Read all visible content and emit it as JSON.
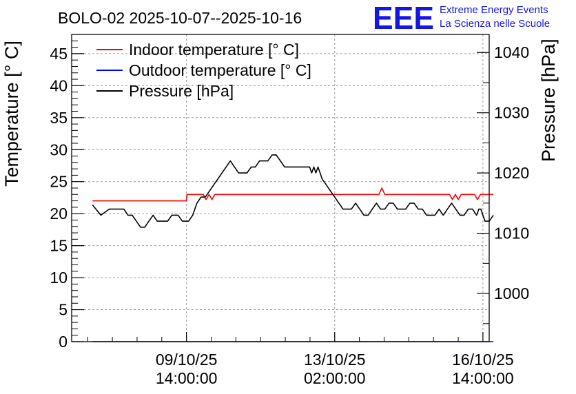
{
  "chart_data": {
    "type": "line",
    "title": "BOLO-02 2025-10-07--2025-10-16",
    "ylabel": "Temperature [° C]",
    "ylabel_right": "Pressure [hPa]",
    "xlabel": "",
    "ylim": [
      0,
      48
    ],
    "ylim_right": [
      992,
      1043
    ],
    "xlim": [
      0,
      100
    ],
    "left_ticks": [
      "0",
      "5",
      "10",
      "15",
      "20",
      "25",
      "30",
      "35",
      "40",
      "45"
    ],
    "left_tick_values": [
      0,
      5,
      10,
      15,
      20,
      25,
      30,
      35,
      40,
      45
    ],
    "right_ticks": [
      "1000",
      "1010",
      "1020",
      "1030",
      "1040"
    ],
    "right_tick_values": [
      1000,
      1010,
      1020,
      1030,
      1040
    ],
    "x_ticks": [
      {
        "x": 27.5,
        "line1": "09/10/25",
        "line2": "14:00:00"
      },
      {
        "x": 63.0,
        "line1": "13/10/25",
        "line2": "02:00:00"
      },
      {
        "x": 98.5,
        "line1": "16/10/25",
        "line2": "14:00:00"
      }
    ],
    "grid": true,
    "legend_position": "top-left",
    "legend": [
      {
        "name": "Indoor temperature [° C]",
        "color": "#ff0000"
      },
      {
        "name": "Outdoor temperature [° C]",
        "color": "#0000ff"
      },
      {
        "name": "Pressure [hPa]",
        "color": "#000000"
      }
    ],
    "series": [
      {
        "name": "Indoor temperature [° C]",
        "axis": "left",
        "color": "#ff0000",
        "points": [
          [
            5,
            22
          ],
          [
            27.5,
            22
          ],
          [
            27.6,
            23
          ],
          [
            31.5,
            23
          ],
          [
            32.2,
            22.2
          ],
          [
            32.9,
            23
          ],
          [
            33.6,
            22.2
          ],
          [
            34.3,
            23
          ],
          [
            73.6,
            23
          ],
          [
            74.3,
            24
          ],
          [
            75.0,
            23
          ],
          [
            90.5,
            23
          ],
          [
            91.2,
            22.2
          ],
          [
            91.9,
            23
          ],
          [
            92.6,
            22.2
          ],
          [
            93.3,
            23
          ],
          [
            96.5,
            23
          ],
          [
            97.2,
            22.2
          ],
          [
            97.9,
            23
          ],
          [
            101,
            23
          ]
        ]
      },
      {
        "name": "Outdoor temperature [° C]",
        "axis": "left",
        "color": "#0000ff",
        "points": [
          [
            5,
            0
          ],
          [
            101,
            0
          ]
        ]
      },
      {
        "name": "Pressure [hPa]",
        "axis": "right",
        "color": "#000000",
        "points": [
          [
            5,
            1014.7
          ],
          [
            7,
            1013
          ],
          [
            9,
            1014
          ],
          [
            11,
            1014
          ],
          [
            12.5,
            1014
          ],
          [
            13.5,
            1013
          ],
          [
            14.5,
            1013
          ],
          [
            15.5,
            1012
          ],
          [
            16.5,
            1011
          ],
          [
            17.5,
            1011
          ],
          [
            18.5,
            1012
          ],
          [
            19.5,
            1013
          ],
          [
            20.5,
            1012
          ],
          [
            22,
            1012
          ],
          [
            23,
            1012
          ],
          [
            24,
            1013
          ],
          [
            25.5,
            1013
          ],
          [
            26.5,
            1012
          ],
          [
            28,
            1012
          ],
          [
            29,
            1013
          ],
          [
            30,
            1015
          ],
          [
            31,
            1016
          ],
          [
            32,
            1016
          ],
          [
            33,
            1017
          ],
          [
            34,
            1018
          ],
          [
            35,
            1019
          ],
          [
            36,
            1020
          ],
          [
            37,
            1021
          ],
          [
            38,
            1022
          ],
          [
            39,
            1021
          ],
          [
            40,
            1020
          ],
          [
            42,
            1020
          ],
          [
            43,
            1021
          ],
          [
            44,
            1021
          ],
          [
            45,
            1022
          ],
          [
            47,
            1022
          ],
          [
            48,
            1023
          ],
          [
            49,
            1023
          ],
          [
            50,
            1022
          ],
          [
            51,
            1021
          ],
          [
            53,
            1021
          ],
          [
            55,
            1021
          ],
          [
            57,
            1021
          ],
          [
            57.5,
            1020
          ],
          [
            58,
            1021
          ],
          [
            58.5,
            1020
          ],
          [
            59,
            1021
          ],
          [
            59.5,
            1020
          ],
          [
            60,
            1019
          ],
          [
            61,
            1018
          ],
          [
            62,
            1017
          ],
          [
            63,
            1016
          ],
          [
            64,
            1015
          ],
          [
            65,
            1014
          ],
          [
            66,
            1014
          ],
          [
            67,
            1014
          ],
          [
            68,
            1015
          ],
          [
            69,
            1014
          ],
          [
            70,
            1013
          ],
          [
            71,
            1013
          ],
          [
            72,
            1014
          ],
          [
            73,
            1015
          ],
          [
            74,
            1014
          ],
          [
            75,
            1014
          ],
          [
            76,
            1015
          ],
          [
            77,
            1015
          ],
          [
            78,
            1014
          ],
          [
            80,
            1014
          ],
          [
            81,
            1015
          ],
          [
            82,
            1015
          ],
          [
            83,
            1014
          ],
          [
            84,
            1014
          ],
          [
            85,
            1013
          ],
          [
            87,
            1013
          ],
          [
            88,
            1014
          ],
          [
            89,
            1013
          ],
          [
            90,
            1014
          ],
          [
            91,
            1015
          ],
          [
            92,
            1014
          ],
          [
            93,
            1013
          ],
          [
            94,
            1013
          ],
          [
            95,
            1014
          ],
          [
            96,
            1014
          ],
          [
            97,
            1013
          ],
          [
            97.5,
            1014
          ],
          [
            98,
            1014
          ],
          [
            99,
            1012
          ],
          [
            100,
            1012
          ],
          [
            101,
            1013
          ]
        ]
      }
    ]
  },
  "logo": {
    "mark": "EEE",
    "line1": "Extreme Energy Events",
    "line2": "La Scienza nelle Scuole"
  }
}
